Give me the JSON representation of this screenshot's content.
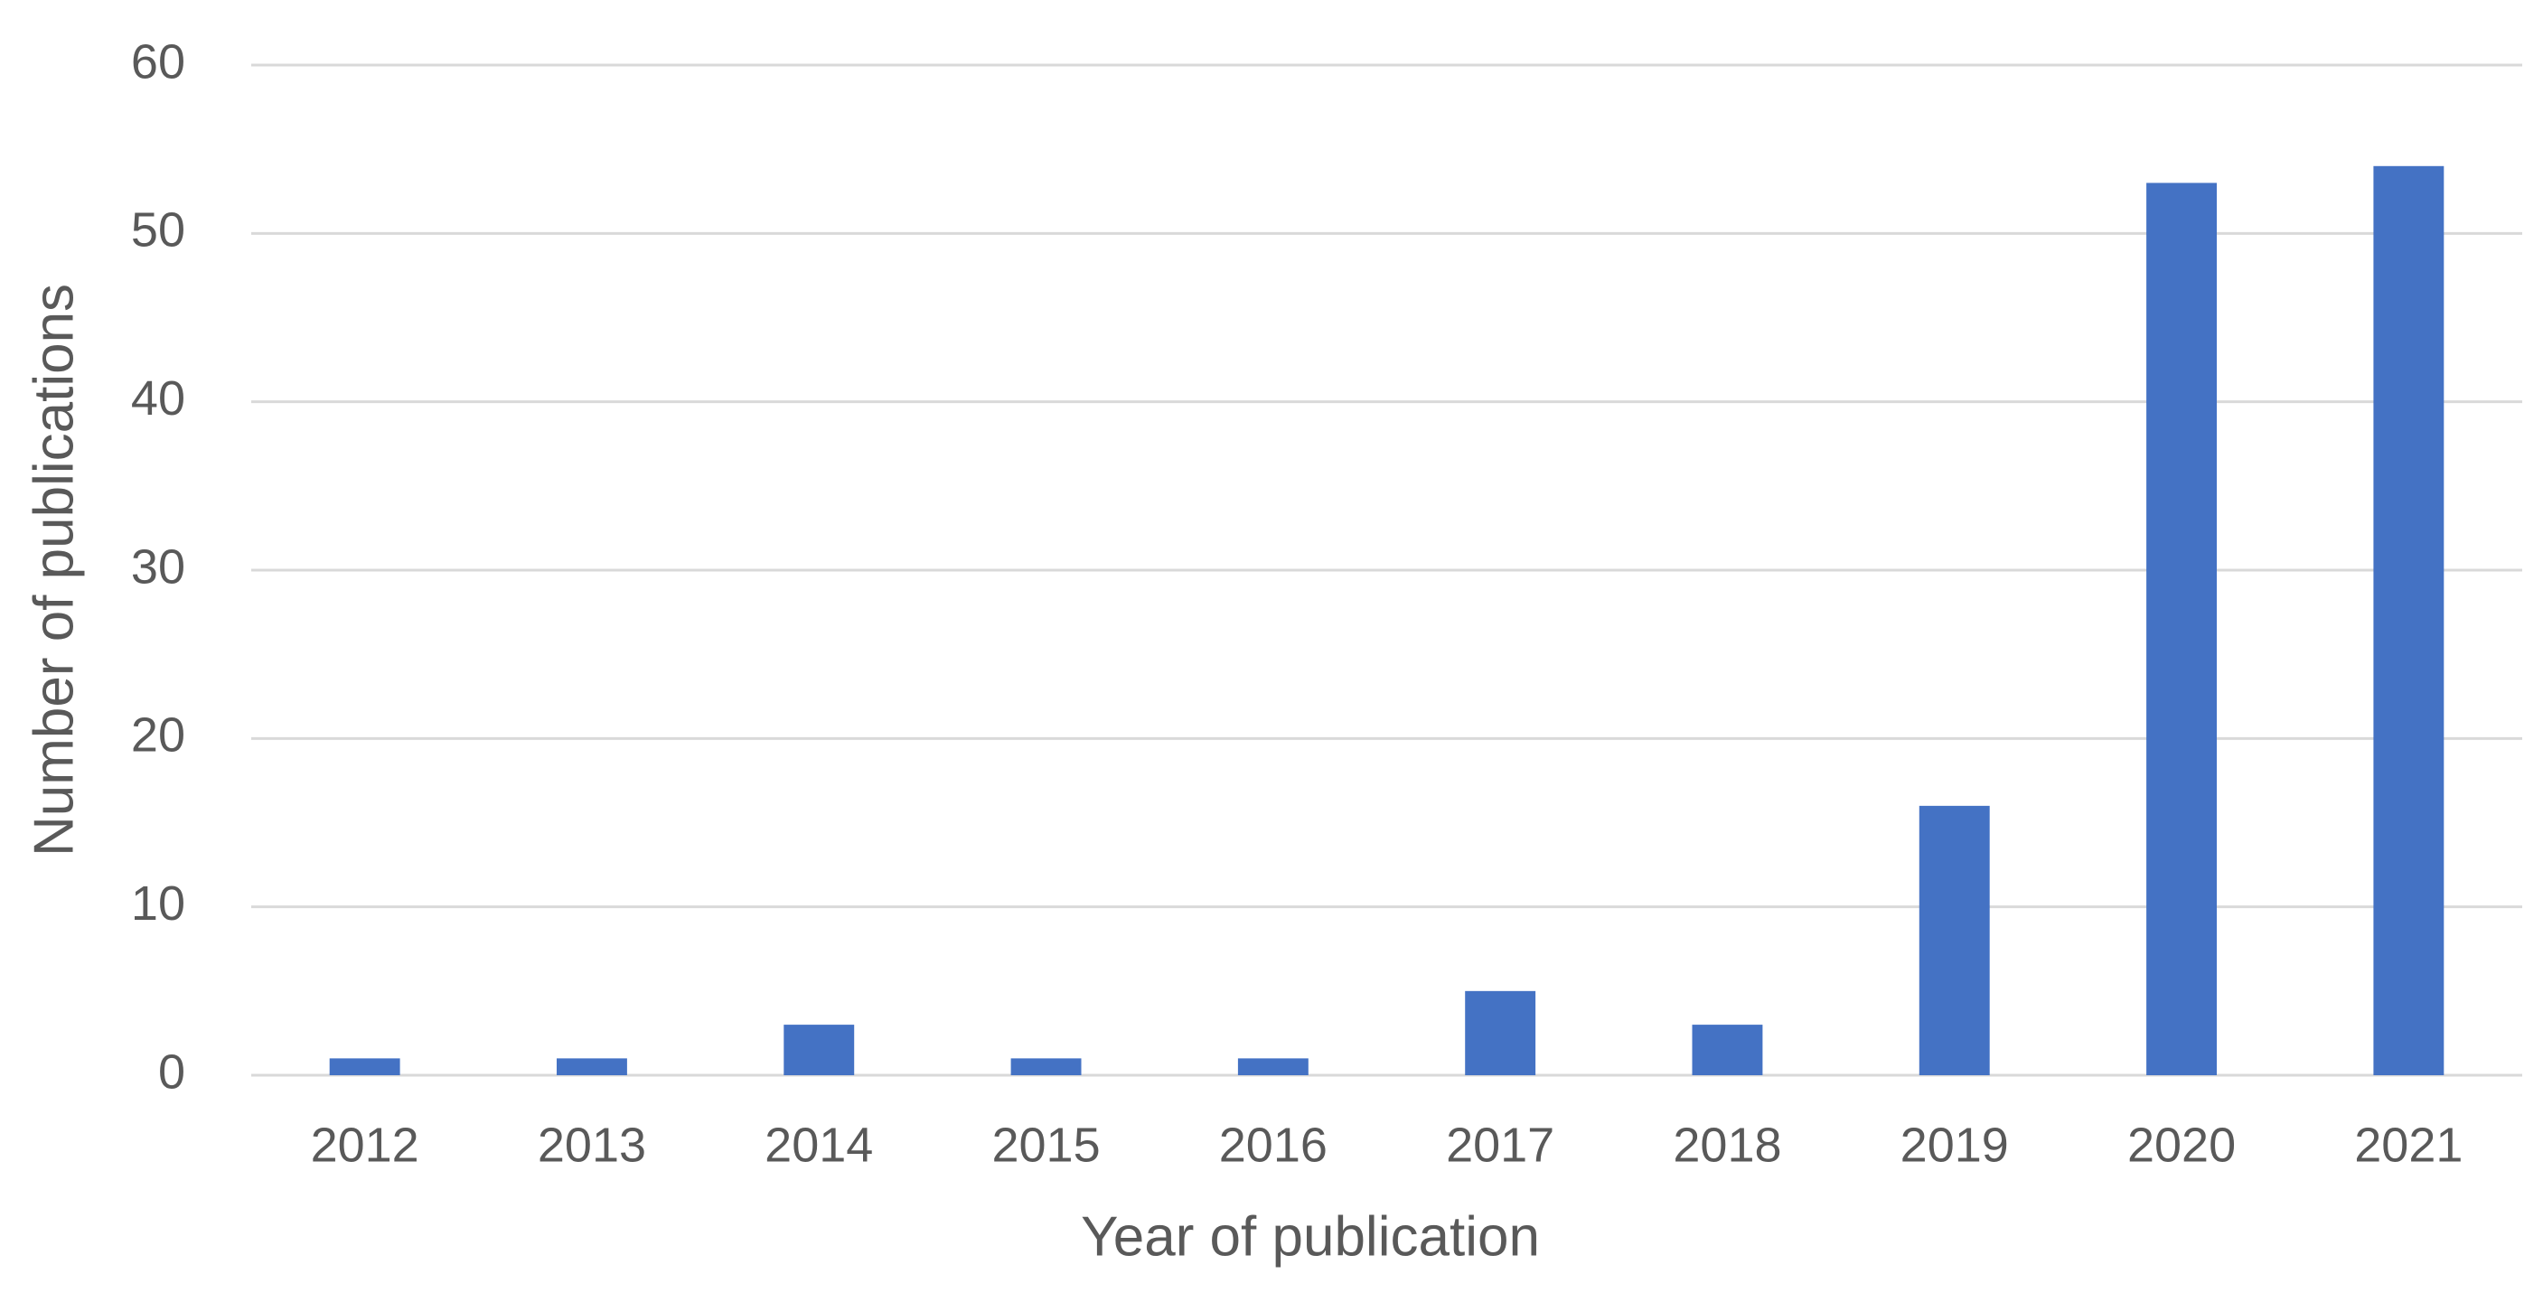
{
  "chart_data": {
    "type": "bar",
    "x_label": "Year of publication",
    "y_label": "Number of publications",
    "categories": [
      "2012",
      "2013",
      "2014",
      "2015",
      "2016",
      "2017",
      "2018",
      "2019",
      "2020",
      "2021"
    ],
    "values": [
      1,
      1,
      3,
      1,
      1,
      5,
      3,
      16,
      53,
      54
    ],
    "color": "#4472c4",
    "ylim": [
      0,
      60
    ],
    "yticks": [
      0,
      10,
      20,
      30,
      40,
      50,
      60
    ],
    "grid": true
  }
}
